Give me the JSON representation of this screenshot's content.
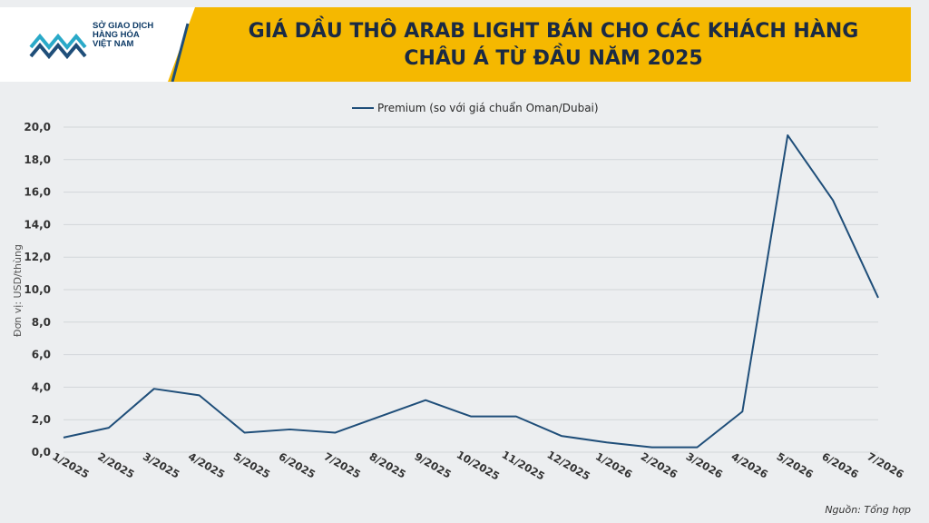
{
  "header": {
    "logo_lines": [
      "SỞ GIAO DỊCH",
      "HÀNG HÓA",
      "VIỆT NAM"
    ],
    "title_lines": [
      "GIÁ DẦU THÔ ARAB LIGHT BÁN CHO CÁC KHÁCH HÀNG",
      "CHÂU Á TỪ ĐẦU NĂM 2025"
    ],
    "accent_color": "#f5b800"
  },
  "source": "Nguồn: Tổng hợp",
  "chart_data": {
    "type": "line",
    "title": "GIÁ DẦU THÔ ARAB LIGHT BÁN CHO CÁC KHÁCH HÀNG CHÂU Á TỪ ĐẦU NĂM 2025",
    "ylabel": "Đơn vị: USD/thùng",
    "xlabel": "",
    "ylim": [
      0,
      20
    ],
    "yticks": [
      "0,0",
      "2,0",
      "4,0",
      "6,0",
      "8,0",
      "10,0",
      "12,0",
      "14,0",
      "16,0",
      "18,0",
      "20,0"
    ],
    "grid": true,
    "legend_position": "top-center",
    "categories": [
      "1/2025",
      "2/2025",
      "3/2025",
      "4/2025",
      "5/2025",
      "6/2025",
      "7/2025",
      "8/2025",
      "9/2025",
      "10/2025",
      "11/2025",
      "12/2025",
      "1/2026",
      "2/2026",
      "3/2026",
      "4/2026",
      "5/2026",
      "6/2026",
      "7/2026"
    ],
    "series": [
      {
        "name": "Premium (so với giá chuẩn Oman/Dubai)",
        "color": "#1f4e79",
        "values": [
          0.9,
          1.5,
          3.9,
          3.5,
          1.2,
          1.4,
          1.2,
          2.2,
          3.2,
          2.2,
          2.2,
          1.0,
          0.6,
          0.3,
          0.3,
          2.5,
          19.5,
          15.5,
          9.5
        ]
      }
    ]
  }
}
